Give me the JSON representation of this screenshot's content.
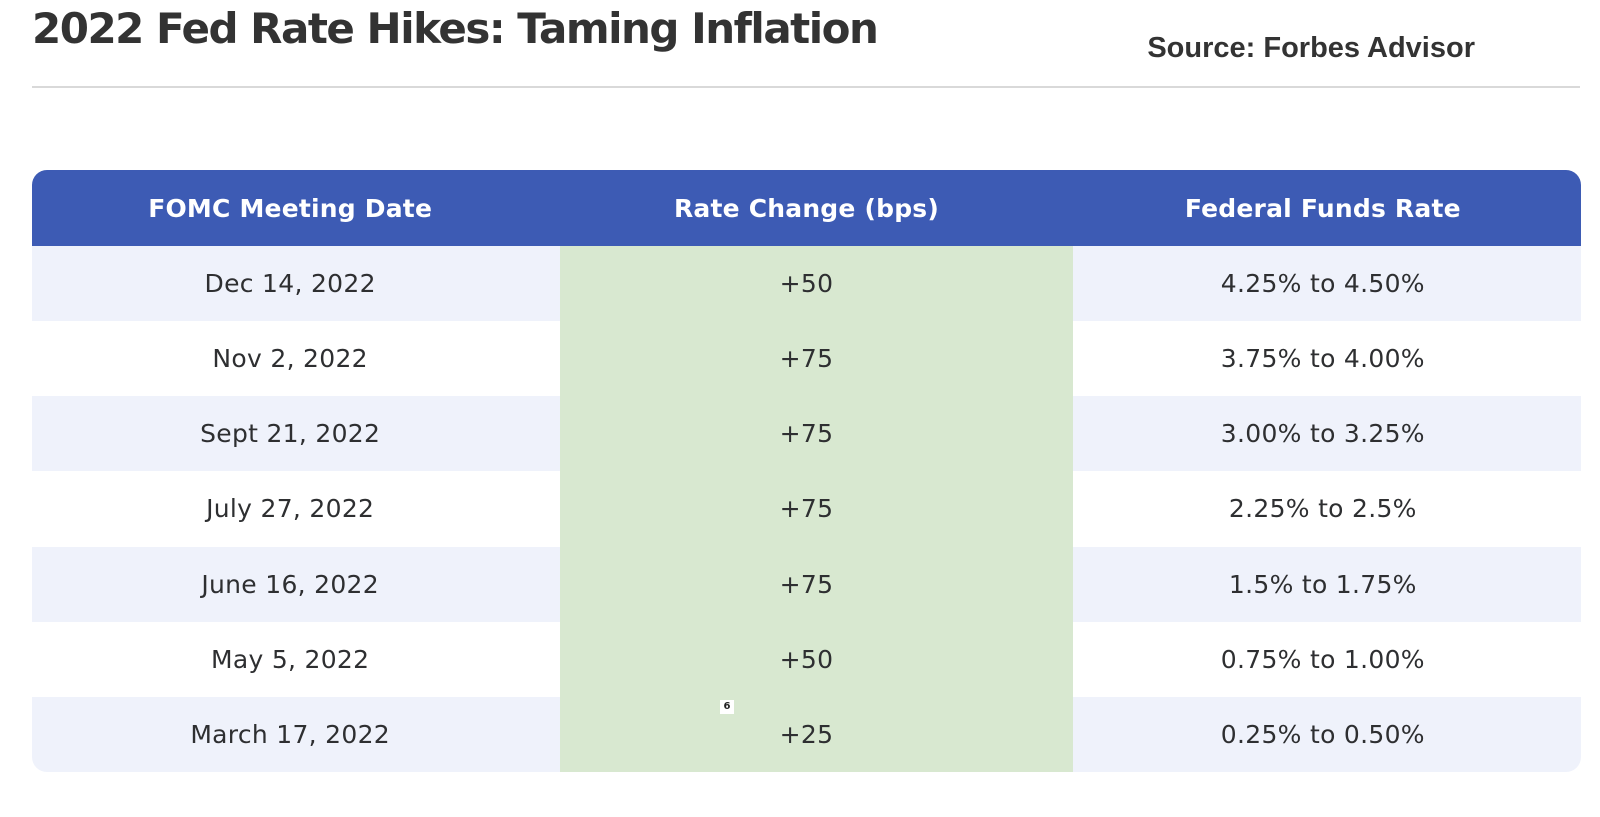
{
  "header": {
    "title": "2022 Fed Rate Hikes: Taming Inflation",
    "source": "Source: Forbes Advisor"
  },
  "table": {
    "columns": [
      "FOMC Meeting Date",
      "Rate Change (bps)",
      "Federal Funds Rate"
    ],
    "rows": [
      {
        "date": "Dec 14, 2022",
        "change": "+50",
        "rate": "4.25% to 4.50%"
      },
      {
        "date": "Nov 2, 2022",
        "change": "+75",
        "rate": "3.75% to 4.00%"
      },
      {
        "date": "Sept 21, 2022",
        "change": "+75",
        "rate": "3.00% to 3.25%"
      },
      {
        "date": "July 27, 2022",
        "change": "+75",
        "rate": "2.25% to 2.5%"
      },
      {
        "date": "June 16, 2022",
        "change": "+75",
        "rate": "1.5% to 1.75%"
      },
      {
        "date": "May 5, 2022",
        "change": "+50",
        "rate": "0.75% to 1.00%"
      },
      {
        "date": "March 17, 2022",
        "change": "+25",
        "rate": "0.25% to 0.50%"
      }
    ]
  },
  "artifact": {
    "glyph": "6"
  },
  "colors": {
    "header_bg": "#3d5bb4",
    "header_text": "#ffffff",
    "row_alt_bg": "#eff2fb",
    "row_bg": "#ffffff",
    "rate_change_column_bg": "#d8e8d0",
    "body_text": "#2e2f31",
    "title_text": "#333333",
    "divider": "#d9d9d9"
  },
  "chart_data": {
    "type": "table",
    "title": "2022 Fed Rate Hikes: Taming Inflation",
    "source": "Source: Forbes Advisor",
    "columns": [
      "FOMC Meeting Date",
      "Rate Change (bps)",
      "Federal Funds Rate"
    ],
    "rows": [
      [
        "Dec 14, 2022",
        "+50",
        "4.25% to 4.50%"
      ],
      [
        "Nov 2, 2022",
        "+75",
        "3.75% to 4.00%"
      ],
      [
        "Sept 21, 2022",
        "+75",
        "3.00% to 3.25%"
      ],
      [
        "July 27, 2022",
        "+75",
        "2.25% to 2.5%"
      ],
      [
        "June 16, 2022",
        "+75",
        "1.5% to 1.75%"
      ],
      [
        "May 5, 2022",
        "+50",
        "0.75% to 1.00%"
      ],
      [
        "March 17, 2022",
        "+25",
        "0.25% to 0.50%"
      ]
    ],
    "rate_change_bps_values": [
      50,
      75,
      75,
      75,
      75,
      50,
      25
    ],
    "layout_hints": {
      "highlighted_column": "Rate Change (bps)",
      "highlight_color": "#d8e8d0",
      "alternating_row_colors": [
        "#eff2fb",
        "#ffffff"
      ]
    }
  }
}
